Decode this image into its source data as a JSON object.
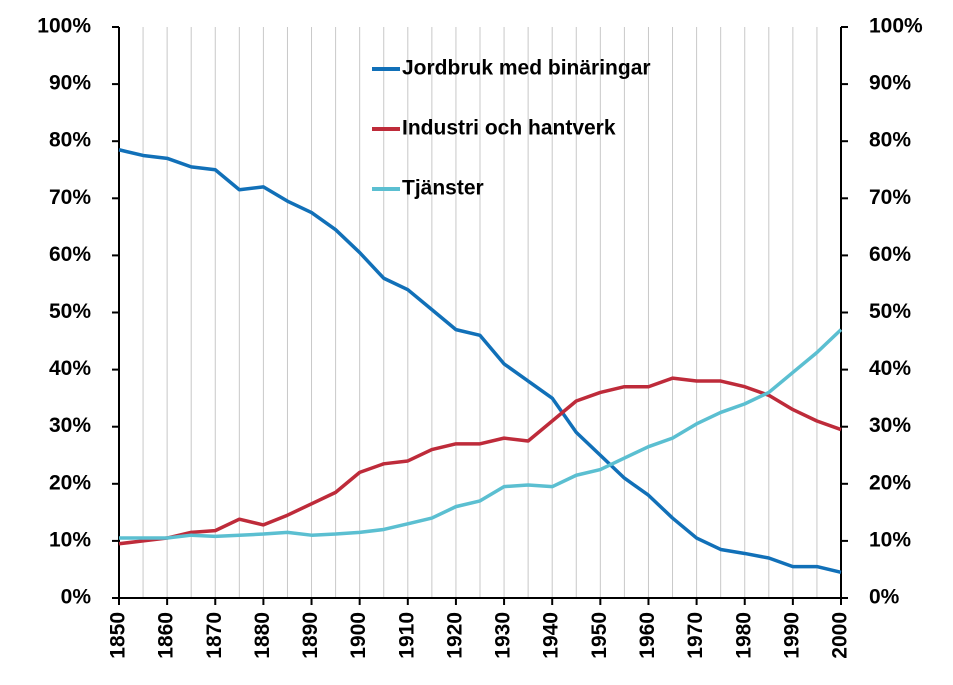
{
  "chart_data": {
    "type": "line",
    "x": [
      1850,
      1855,
      1860,
      1865,
      1870,
      1875,
      1880,
      1885,
      1890,
      1895,
      1900,
      1905,
      1910,
      1915,
      1920,
      1925,
      1930,
      1935,
      1940,
      1945,
      1950,
      1955,
      1960,
      1965,
      1970,
      1975,
      1980,
      1985,
      1990,
      1995,
      2000
    ],
    "series": [
      {
        "name": "Jordbruk med binäringar",
        "color": "#1170b8",
        "values": [
          78.5,
          77.5,
          77,
          75.5,
          75,
          71.5,
          72,
          69.5,
          67.5,
          64.5,
          60.5,
          56,
          54,
          50.5,
          47,
          46,
          41,
          38,
          35,
          29,
          25,
          21,
          18,
          14,
          10.5,
          8.5,
          7.8,
          7,
          5.5,
          5.5,
          4.5
        ]
      },
      {
        "name": "Industri och hantverk",
        "color": "#be2b3a",
        "values": [
          9.5,
          10,
          10.5,
          11.5,
          11.8,
          13.8,
          12.8,
          14.5,
          16.5,
          18.5,
          22,
          23.5,
          24,
          26,
          27,
          27,
          28,
          27.5,
          31,
          34.5,
          36,
          37,
          37,
          38.5,
          38,
          38,
          37,
          35.5,
          33,
          31,
          29.5
        ]
      },
      {
        "name": "Tjänster",
        "color": "#5bbfd1",
        "values": [
          10.5,
          10.5,
          10.5,
          11,
          10.8,
          11,
          11.2,
          11.5,
          11,
          11.2,
          11.5,
          12,
          13,
          14,
          16,
          17,
          19.5,
          19.8,
          19.5,
          21.5,
          22.5,
          24.5,
          26.5,
          28,
          30.5,
          32.5,
          34,
          36,
          39.5,
          43,
          47
        ]
      }
    ],
    "xlim": [
      1850,
      2000
    ],
    "xticks": [
      1850,
      1860,
      1870,
      1880,
      1890,
      1900,
      1910,
      1920,
      1930,
      1940,
      1950,
      1960,
      1970,
      1980,
      1990,
      2000
    ],
    "xgrid": [
      1850,
      1855,
      1860,
      1865,
      1870,
      1875,
      1880,
      1885,
      1890,
      1895,
      1900,
      1905,
      1910,
      1915,
      1920,
      1925,
      1930,
      1935,
      1940,
      1945,
      1950,
      1955,
      1960,
      1965,
      1970,
      1975,
      1980,
      1985,
      1990,
      1995,
      2000
    ],
    "ylim": [
      0,
      100
    ],
    "yticks": [
      {
        "value": 0,
        "label": "0%"
      },
      {
        "value": 10,
        "label": "10%"
      },
      {
        "value": 20,
        "label": "20%"
      },
      {
        "value": 30,
        "label": "30%"
      },
      {
        "value": 40,
        "label": "40%"
      },
      {
        "value": 50,
        "label": "50%"
      },
      {
        "value": 60,
        "label": "60%"
      },
      {
        "value": 70,
        "label": "70%"
      },
      {
        "value": 80,
        "label": "80%"
      },
      {
        "value": 90,
        "label": "90%"
      },
      {
        "value": 100,
        "label": "100%"
      }
    ],
    "y2lim": [
      0,
      100
    ],
    "y2ticks": [
      {
        "value": 0,
        "label": "0%"
      },
      {
        "value": 10,
        "label": "10%"
      },
      {
        "value": 20,
        "label": "20%"
      },
      {
        "value": 30,
        "label": "30%"
      },
      {
        "value": 40,
        "label": "40%"
      },
      {
        "value": 50,
        "label": "50%"
      },
      {
        "value": 60,
        "label": "60%"
      },
      {
        "value": 70,
        "label": "70%"
      },
      {
        "value": 80,
        "label": "80%"
      },
      {
        "value": 90,
        "label": "90%"
      },
      {
        "value": 100,
        "label": "100%"
      }
    ],
    "legend": "top"
  }
}
